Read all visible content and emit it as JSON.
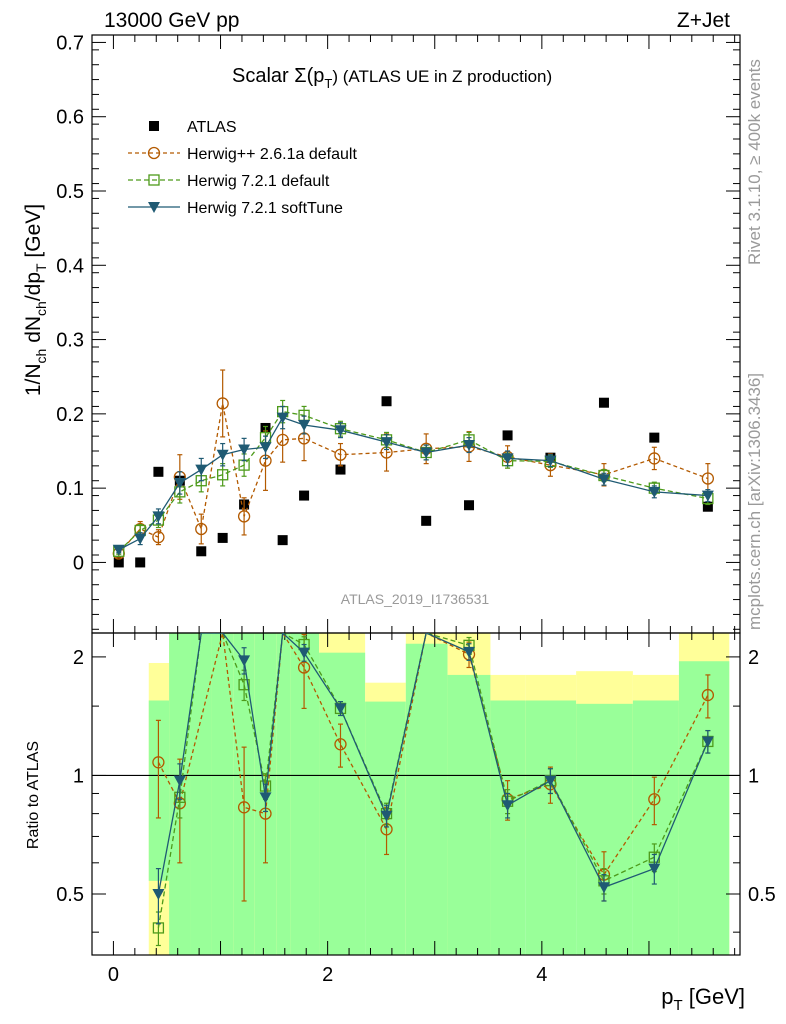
{
  "header": {
    "left": "13000 GeV pp",
    "right": "Z+Jet"
  },
  "side_labels": {
    "rivet": "Rivet 3.1.10, ≥ 400k events",
    "mcplots": "mcplots.cern.ch [arXiv:1306.3436]"
  },
  "watermark": "ATLAS_2019_I1736531",
  "chart_data": {
    "type": "scatter",
    "title": "Scalar Σ(pT) (ATLAS UE in Z production)",
    "title_parts": {
      "main": "Scalar Σ(p",
      "sub": "T",
      "end": ") (ATLAS UE in Z production)"
    },
    "ylabel": "1/N_ch dN_ch/dp_T [GeV]",
    "ylabel_parts": {
      "a": "1/N",
      "a_sub": "ch",
      "b": " dN",
      "b_sub": "ch",
      "c": "/dp",
      "c_sub": "T",
      "d": " [GeV]"
    },
    "xlabel": "p_T [GeV]",
    "xlabel_parts": {
      "a": "p",
      "a_sub": "T",
      "b": " [GeV]"
    },
    "ratio_ylabel": "Ratio to ATLAS",
    "xlim": [
      -0.2,
      5.85
    ],
    "ylim": [
      -0.095,
      0.71
    ],
    "ratio_ylim": [
      0.35,
      2.3
    ],
    "x_ticks": [
      "0",
      "2",
      "4"
    ],
    "y_ticks": [
      "0",
      "0.1",
      "0.2",
      "0.3",
      "0.4",
      "0.5",
      "0.6",
      "0.7"
    ],
    "ratio_ticks": [
      "0.5",
      "1",
      "2"
    ],
    "legend": [
      "ATLAS",
      "Herwig++ 2.6.1a default",
      "Herwig 7.2.1 default",
      "Herwig 7.2.1 softTune"
    ],
    "colors": {
      "data": "#000000",
      "herwigpp": "#b35a00",
      "h721": "#4d9a1a",
      "soft": "#1f5a73",
      "band_inner": "#99ff99",
      "band_outer": "#ffff99"
    },
    "x": [
      0.05,
      0.25,
      0.42,
      0.62,
      0.82,
      1.02,
      1.22,
      1.42,
      1.58,
      1.78,
      2.12,
      2.55,
      2.92,
      3.32,
      3.68,
      4.08,
      4.58,
      5.05,
      5.55
    ],
    "series": [
      {
        "name": "ATLAS",
        "values": [
          0.0,
          0.0,
          0.122,
          0.11,
          0.015,
          0.033,
          0.078,
          0.181,
          0.03,
          0.09,
          0.125,
          0.217,
          0.056,
          0.077,
          0.171,
          0.141,
          0.215,
          0.168,
          0.075
        ]
      },
      {
        "name": "Herwig++ 2.6.1a default",
        "values": [
          0.012,
          0.045,
          0.034,
          0.115,
          0.045,
          0.214,
          0.062,
          0.137,
          0.165,
          0.167,
          0.145,
          0.148,
          0.153,
          0.156,
          0.142,
          0.131,
          0.118,
          0.14,
          0.113
        ],
        "errors": [
          0.005,
          0.01,
          0.01,
          0.03,
          0.02,
          0.045,
          0.025,
          0.04,
          0.03,
          0.03,
          0.015,
          0.025,
          0.02,
          0.02,
          0.015,
          0.015,
          0.015,
          0.015,
          0.02
        ]
      },
      {
        "name": "Herwig 7.2.1 default",
        "values": [
          0.015,
          0.043,
          0.057,
          0.095,
          0.11,
          0.118,
          0.131,
          0.168,
          0.203,
          0.198,
          0.18,
          0.165,
          0.148,
          0.165,
          0.137,
          0.136,
          0.117,
          0.1,
          0.086
        ],
        "errors": [
          0.004,
          0.008,
          0.01,
          0.015,
          0.015,
          0.015,
          0.015,
          0.015,
          0.015,
          0.012,
          0.01,
          0.01,
          0.01,
          0.01,
          0.01,
          0.008,
          0.008,
          0.008,
          0.008
        ]
      },
      {
        "name": "Herwig 7.2.1 softTune",
        "values": [
          0.017,
          0.032,
          0.062,
          0.107,
          0.125,
          0.145,
          0.152,
          0.155,
          0.195,
          0.185,
          0.178,
          0.162,
          0.148,
          0.158,
          0.14,
          0.137,
          0.112,
          0.095,
          0.09
        ],
        "errors": [
          0.004,
          0.008,
          0.01,
          0.015,
          0.015,
          0.015,
          0.015,
          0.015,
          0.015,
          0.012,
          0.01,
          0.01,
          0.01,
          0.01,
          0.01,
          0.008,
          0.008,
          0.008,
          0.008
        ]
      }
    ],
    "ratio_series": [
      {
        "name": "Herwig++ 2.6.1a default",
        "values": [
          null,
          null,
          1.08,
          0.85,
          null,
          2.3,
          0.83,
          0.8,
          2.3,
          1.88,
          1.2,
          0.73,
          2.3,
          2.03,
          0.87,
          0.95,
          0.56,
          0.87,
          1.6
        ],
        "errors": [
          0,
          0,
          0.3,
          0.25,
          0,
          0,
          0.35,
          0.2,
          0,
          0.4,
          0.15,
          0.1,
          0,
          0.15,
          0.1,
          0.1,
          0.08,
          0.12,
          0.2
        ]
      },
      {
        "name": "Herwig 7.2.1 default",
        "values": [
          null,
          null,
          0.41,
          0.88,
          2.3,
          2.3,
          1.7,
          0.94,
          2.3,
          2.15,
          1.48,
          0.8,
          2.3,
          2.14,
          0.86,
          0.97,
          0.54,
          0.62,
          1.22
        ],
        "errors": [
          0,
          0,
          0.04,
          0.1,
          0,
          0,
          0.15,
          0.07,
          0,
          0.1,
          0.06,
          0.05,
          0,
          0.1,
          0.06,
          0.07,
          0.04,
          0.05,
          0.08
        ]
      },
      {
        "name": "Herwig 7.2.1 softTune",
        "values": [
          null,
          null,
          0.5,
          0.97,
          2.3,
          2.3,
          1.96,
          0.88,
          2.3,
          2.05,
          1.48,
          0.79,
          2.3,
          2.06,
          0.84,
          0.97,
          0.52,
          0.58,
          1.22
        ],
        "errors": [
          0,
          0,
          0.08,
          0.1,
          0,
          0,
          0.15,
          0.07,
          0,
          0.1,
          0.06,
          0.05,
          0,
          0.1,
          0.06,
          0.07,
          0.04,
          0.05,
          0.08
        ]
      }
    ],
    "bands": {
      "edges": [
        0.33,
        0.52,
        0.72,
        0.92,
        1.12,
        1.32,
        1.52,
        1.65,
        1.92,
        2.35,
        2.73,
        3.12,
        3.52,
        3.85,
        4.32,
        4.85,
        5.28,
        5.75
      ],
      "outer_low": [
        0.35,
        0.35,
        0.35,
        0.35,
        0.35,
        0.35,
        0.35,
        0.35,
        0.35,
        0.72,
        0.35,
        0.35,
        0.69,
        0.69,
        0.69,
        0.69,
        0.35
      ],
      "outer_high": [
        1.93,
        2.3,
        2.3,
        2.3,
        2.3,
        2.3,
        2.3,
        2.3,
        2.3,
        1.72,
        2.3,
        2.3,
        1.8,
        1.8,
        1.84,
        1.8,
        2.3
      ],
      "inner_low": [
        0.54,
        0.35,
        0.35,
        0.35,
        0.35,
        0.35,
        0.35,
        0.35,
        0.35,
        0.35,
        0.35,
        0.35,
        0.35,
        0.35,
        0.35,
        0.35,
        0.35
      ],
      "inner_high": [
        1.55,
        2.3,
        2.3,
        2.3,
        2.3,
        2.3,
        2.3,
        2.3,
        2.05,
        1.54,
        2.16,
        1.8,
        1.55,
        1.55,
        1.52,
        1.55,
        1.95
      ]
    }
  }
}
